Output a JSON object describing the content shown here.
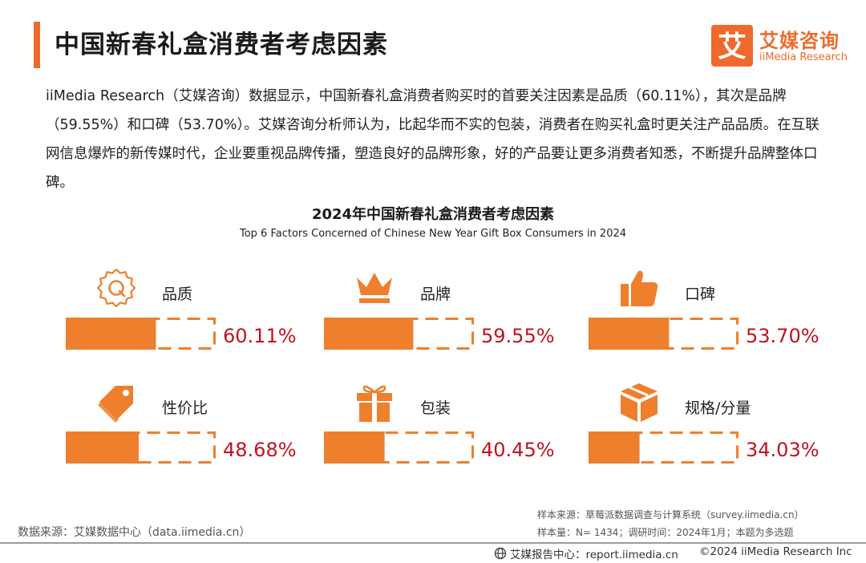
{
  "header": {
    "title": "中国新春礼盒消费者考虑因素",
    "logo_cn": "艾媒咨询",
    "logo_en": "iiMedia Research",
    "logo_mark": "艾"
  },
  "intro_text": "iiMedia Research（艾媒咨询）数据显示，中国新春礼盒消费者购买时的首要关注因素是品质（60.11%），其次是品牌（59.55%）和口碑（53.70%）。艾媒咨询分析师认为，比起华而不实的包装，消费者在购买礼盒时更关注产品品质。在互联网信息爆炸的新传媒时代，企业要重视品牌传播，塑造良好的品牌形象，好的产品要让更多消费者知悉，不断提升品牌整体口碑。",
  "chart_data": {
    "type": "bar",
    "title": "2024年中国新春礼盒消费者考虑因素",
    "subtitle": "Top 6 Factors Concerned of Chinese New Year Gift Box Consumers in 2024",
    "unit": "%",
    "categories": [
      "品质",
      "品牌",
      "口碑",
      "性价比",
      "包装",
      "规格/分量"
    ],
    "values": [
      60.11,
      59.55,
      53.7,
      48.68,
      40.45,
      34.03
    ],
    "value_labels": [
      "60.11%",
      "59.55%",
      "53.70%",
      "48.68%",
      "40.45%",
      "34.03%"
    ],
    "icons": [
      "gear-q-icon",
      "crown-icon",
      "thumbs-up-icon",
      "price-tag-icon",
      "gift-icon",
      "box-icon"
    ],
    "ylim": [
      0,
      100
    ],
    "bar_color": "#ee7f2d",
    "value_color": "#c1121f"
  },
  "notes": {
    "sample_source": "样本来源：草莓派数据调查与计算系统（survey.iimedia.cn）",
    "sample_size": "样本量：N= 1434；调研时间：2024年1月；本题为多选题",
    "data_source": "数据来源：艾媒数据中心（data.iimedia.cn）"
  },
  "footer": {
    "site": "艾媒报告中心：report.iimedia.cn",
    "copyright": "©2024  iiMedia Research  Inc"
  },
  "colors": {
    "accent": "#ee6a2c"
  }
}
